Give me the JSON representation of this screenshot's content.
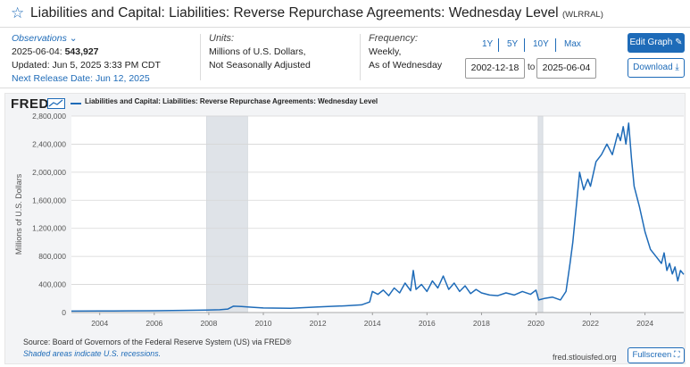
{
  "header": {
    "star_icon": "star-outline-icon",
    "title": "Liabilities and Capital: Liabilities: Reverse Repurchase Agreements: Wednesday Level",
    "series_id": "(WLRRAL)"
  },
  "observations": {
    "label": "Observations",
    "latest_date": "2025-06-04:",
    "latest_value": "543,927",
    "updated": "Updated: Jun 5, 2025 3:33 PM CDT",
    "next_release": "Next Release Date: Jun 12, 2025"
  },
  "units": {
    "label": "Units:",
    "line1": "Millions of U.S. Dollars,",
    "line2": "Not Seasonally Adjusted"
  },
  "frequency": {
    "label": "Frequency:",
    "line1": "Weekly,",
    "line2": "As of Wednesday"
  },
  "range_buttons": [
    "1Y",
    "5Y",
    "10Y",
    "Max"
  ],
  "date_range": {
    "start": "2002-12-18",
    "to": "to",
    "end": "2025-06-04"
  },
  "buttons": {
    "edit_graph": "Edit Graph",
    "download": "Download",
    "fullscreen": "Fullscreen"
  },
  "brand": {
    "logo": "FRED"
  },
  "footer": {
    "source": "Source: Board of Governors of the Federal Reserve System (US) via FRED®",
    "recession_note": "Shaded areas indicate U.S. recessions.",
    "site": "fred.stlouisfed.org"
  },
  "colors": {
    "accent": "#1e6bb8",
    "recession": "#dfe3e8"
  },
  "chart_data": {
    "type": "line",
    "title": "Liabilities and Capital: Liabilities: Reverse Repurchase Agreements: Wednesday Level",
    "legend": "Liabilities and Capital: Liabilities: Reverse Repurchase Agreements: Wednesday Level",
    "ylabel": "Millions of U.S. Dollars",
    "xlabel": "",
    "xlim": [
      2002.96,
      2025.42
    ],
    "ylim": [
      0,
      2800000
    ],
    "x_ticks": [
      2004,
      2006,
      2008,
      2010,
      2012,
      2014,
      2016,
      2018,
      2020,
      2022,
      2024
    ],
    "y_ticks": [
      0,
      400000,
      800000,
      1200000,
      1600000,
      2000000,
      2400000,
      2800000
    ],
    "y_tick_labels": [
      "0",
      "400,000",
      "800,000",
      "1,200,000",
      "1,600,000",
      "2,000,000",
      "2,400,000",
      "2,800,000"
    ],
    "recessions": [
      [
        2007.92,
        2009.42
      ],
      [
        2020.08,
        2020.25
      ]
    ],
    "series": [
      {
        "name": "WLRRAL",
        "x": [
          2002.96,
          2004.0,
          2005.0,
          2006.0,
          2007.0,
          2007.9,
          2008.4,
          2008.7,
          2008.9,
          2009.2,
          2009.6,
          2010.0,
          2011.0,
          2012.0,
          2013.0,
          2013.6,
          2013.9,
          2014.0,
          2014.2,
          2014.4,
          2014.6,
          2014.8,
          2015.0,
          2015.2,
          2015.4,
          2015.5,
          2015.6,
          2015.8,
          2016.0,
          2016.2,
          2016.4,
          2016.6,
          2016.8,
          2017.0,
          2017.2,
          2017.4,
          2017.6,
          2017.8,
          2018.0,
          2018.3,
          2018.6,
          2018.9,
          2019.2,
          2019.5,
          2019.8,
          2020.0,
          2020.1,
          2020.3,
          2020.6,
          2020.9,
          2021.1,
          2021.25,
          2021.35,
          2021.5,
          2021.6,
          2021.75,
          2021.9,
          2022.0,
          2022.2,
          2022.4,
          2022.6,
          2022.8,
          2023.0,
          2023.1,
          2023.2,
          2023.3,
          2023.4,
          2023.5,
          2023.6,
          2023.8,
          2024.0,
          2024.2,
          2024.4,
          2024.6,
          2024.7,
          2024.8,
          2024.9,
          2025.0,
          2025.1,
          2025.2,
          2025.3,
          2025.42
        ],
        "values": [
          20000,
          22000,
          24000,
          26000,
          30000,
          34000,
          40000,
          50000,
          90000,
          85000,
          75000,
          65000,
          60000,
          80000,
          95000,
          110000,
          150000,
          300000,
          260000,
          320000,
          240000,
          350000,
          280000,
          420000,
          310000,
          600000,
          330000,
          400000,
          300000,
          450000,
          350000,
          520000,
          330000,
          420000,
          300000,
          380000,
          270000,
          330000,
          280000,
          250000,
          240000,
          280000,
          250000,
          300000,
          260000,
          320000,
          180000,
          200000,
          220000,
          180000,
          300000,
          700000,
          1000000,
          1600000,
          2000000,
          1750000,
          1900000,
          1800000,
          2150000,
          2250000,
          2400000,
          2250000,
          2550000,
          2450000,
          2650000,
          2400000,
          2700000,
          2200000,
          1800000,
          1500000,
          1150000,
          900000,
          800000,
          700000,
          850000,
          600000,
          700000,
          550000,
          650000,
          450000,
          600000,
          543927
        ]
      }
    ]
  }
}
